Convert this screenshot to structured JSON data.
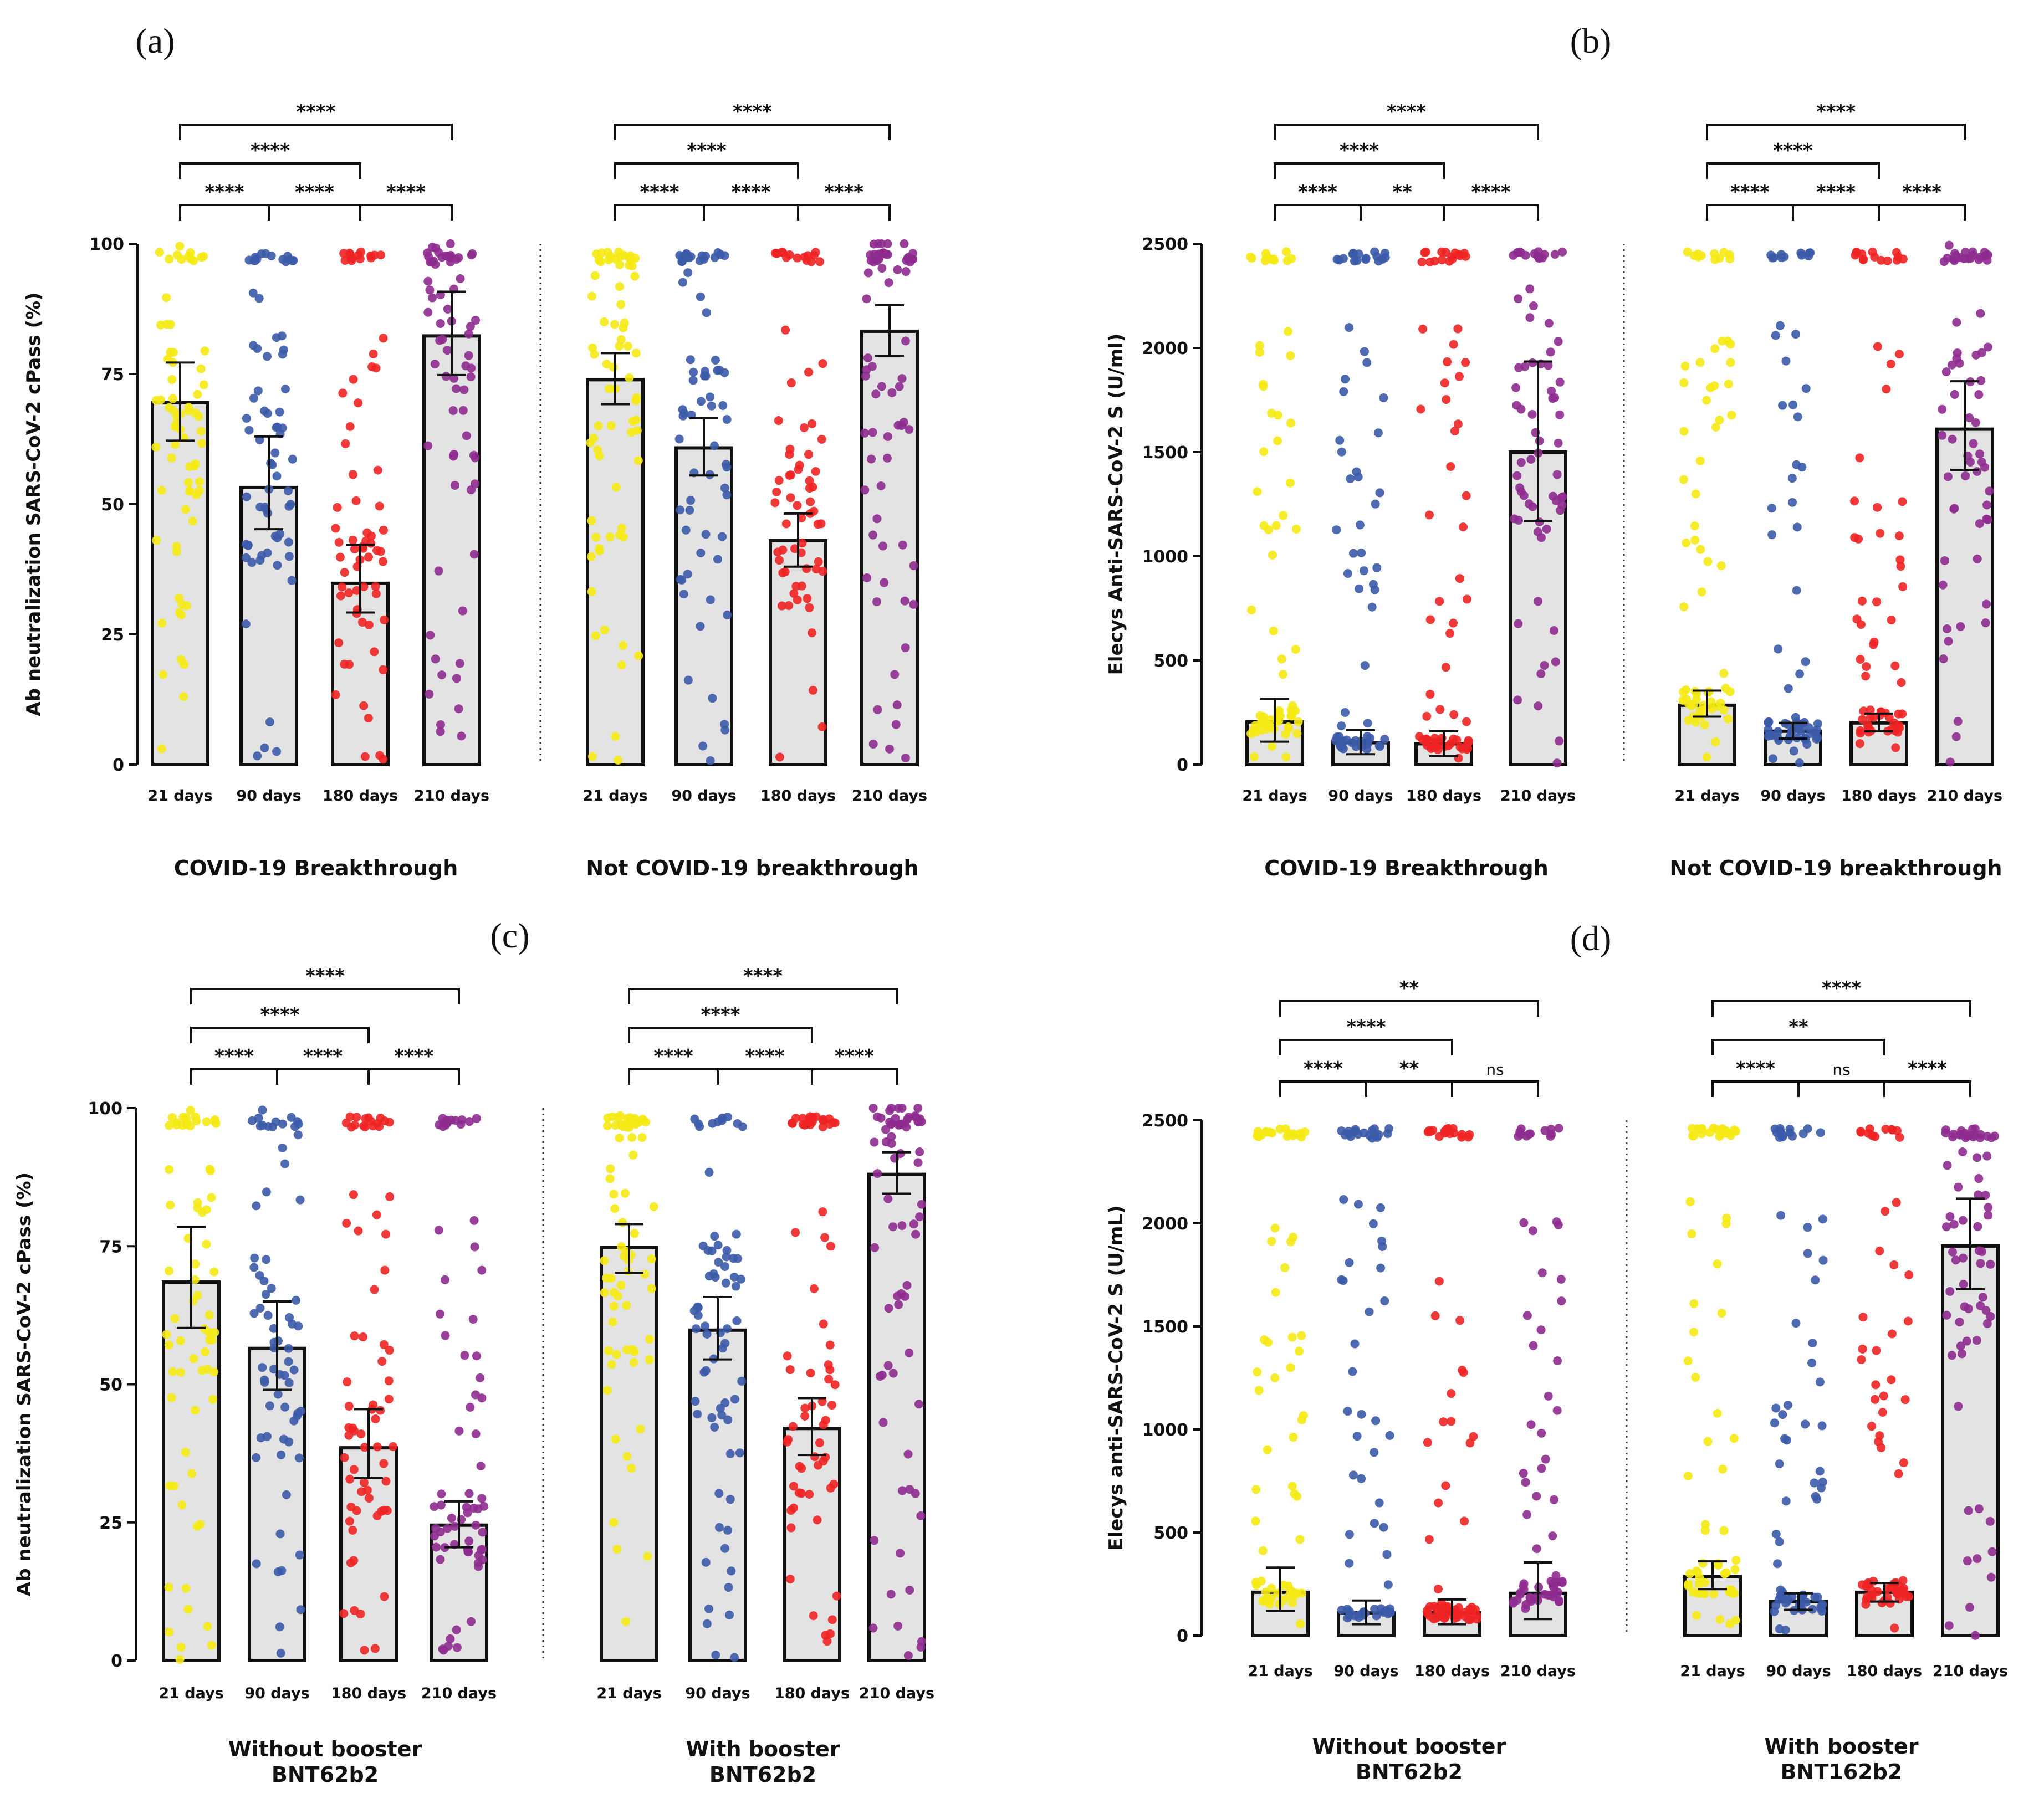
{
  "figure": {
    "x_categories": [
      "21 days",
      "90 days",
      "180 days",
      "210 days"
    ],
    "colors": {
      "21 days": "#f5ea14",
      "90 days": "#3b5aa8",
      "180 days": "#ee2424",
      "210 days": "#8e2b8f",
      "bar_fill": "#e3e3e3",
      "bar_edge": "#111111"
    }
  },
  "chart_data": [
    {
      "panel": "(a)",
      "type": "bar",
      "ylabel": "Ab neutralization SARS-CoV-2 cPass (%)",
      "ylim": [
        0,
        100
      ],
      "yticks": [
        0,
        25,
        50,
        75,
        100
      ],
      "groups": [
        {
          "label_lines": [
            "COVID-19 Breakthrough"
          ],
          "values": [
            69.5,
            53.2,
            34.8,
            82.3
          ],
          "err_low": [
            62.2,
            45.2,
            29.2,
            74.8
          ],
          "err_high": [
            77.2,
            63.0,
            42.2,
            90.8
          ],
          "comparisons": [
            {
              "from": 0,
              "to": 1,
              "label": "****"
            },
            {
              "from": 1,
              "to": 2,
              "label": "****"
            },
            {
              "from": 2,
              "to": 3,
              "label": "****"
            },
            {
              "from": 0,
              "to": 2,
              "label": "****"
            },
            {
              "from": 0,
              "to": 3,
              "label": "****"
            }
          ]
        },
        {
          "label_lines": [
            "Not COVID-19 breakthrough"
          ],
          "values": [
            73.9,
            60.8,
            43.0,
            83.2
          ],
          "err_low": [
            69.2,
            55.5,
            38.0,
            78.5
          ],
          "err_high": [
            79.0,
            66.5,
            48.2,
            88.2
          ],
          "comparisons": [
            {
              "from": 0,
              "to": 1,
              "label": "****"
            },
            {
              "from": 1,
              "to": 2,
              "label": "****"
            },
            {
              "from": 2,
              "to": 3,
              "label": "****"
            },
            {
              "from": 0,
              "to": 2,
              "label": "****"
            },
            {
              "from": 0,
              "to": 3,
              "label": "****"
            }
          ]
        }
      ]
    },
    {
      "panel": "(b)",
      "type": "bar",
      "ylabel": "Elecys Anti-SARS-CoV-2 S (U/ml)",
      "ylim": [
        0,
        2500
      ],
      "yticks": [
        0,
        500,
        1000,
        1500,
        2000,
        2500
      ],
      "groups": [
        {
          "label_lines": [
            "COVID-19 Breakthrough"
          ],
          "values": [
            205,
            105,
            100,
            1500
          ],
          "err_low": [
            110,
            50,
            40,
            1170
          ],
          "err_high": [
            315,
            165,
            160,
            1935
          ],
          "comparisons": [
            {
              "from": 0,
              "to": 1,
              "label": "****"
            },
            {
              "from": 1,
              "to": 2,
              "label": "**"
            },
            {
              "from": 2,
              "to": 3,
              "label": "****"
            },
            {
              "from": 0,
              "to": 2,
              "label": "****"
            },
            {
              "from": 0,
              "to": 3,
              "label": "****"
            }
          ]
        },
        {
          "label_lines": [
            "Not COVID-19 breakthrough"
          ],
          "values": [
            285,
            160,
            200,
            1610
          ],
          "err_low": [
            230,
            125,
            160,
            1415
          ],
          "err_high": [
            355,
            200,
            245,
            1840
          ],
          "comparisons": [
            {
              "from": 0,
              "to": 1,
              "label": "****"
            },
            {
              "from": 1,
              "to": 2,
              "label": "****"
            },
            {
              "from": 2,
              "to": 3,
              "label": "****"
            },
            {
              "from": 0,
              "to": 2,
              "label": "****"
            },
            {
              "from": 0,
              "to": 3,
              "label": "****"
            }
          ]
        }
      ]
    },
    {
      "panel": "(c)",
      "type": "bar",
      "ylabel": "Ab neutralization SARS-CoV-2 cPass (%)",
      "ylim": [
        0,
        100
      ],
      "yticks": [
        0,
        25,
        50,
        75,
        100
      ],
      "groups": [
        {
          "label_lines": [
            "Without booster",
            "BNT62b2"
          ],
          "values": [
            68.5,
            56.5,
            38.5,
            24.5
          ],
          "err_low": [
            60.2,
            49.0,
            33.0,
            20.5
          ],
          "err_high": [
            78.5,
            65.0,
            45.5,
            28.8
          ],
          "comparisons": [
            {
              "from": 0,
              "to": 1,
              "label": "****"
            },
            {
              "from": 1,
              "to": 2,
              "label": "****"
            },
            {
              "from": 2,
              "to": 3,
              "label": "****"
            },
            {
              "from": 0,
              "to": 2,
              "label": "****"
            },
            {
              "from": 0,
              "to": 3,
              "label": "****"
            }
          ]
        },
        {
          "label_lines": [
            "With booster",
            "BNT62b2"
          ],
          "values": [
            74.8,
            59.8,
            42.0,
            88.0
          ],
          "err_low": [
            70.2,
            54.5,
            37.2,
            84.5
          ],
          "err_high": [
            79.0,
            65.8,
            47.5,
            92.0
          ],
          "comparisons": [
            {
              "from": 0,
              "to": 1,
              "label": "****"
            },
            {
              "from": 1,
              "to": 2,
              "label": "****"
            },
            {
              "from": 2,
              "to": 3,
              "label": "****"
            },
            {
              "from": 0,
              "to": 2,
              "label": "****"
            },
            {
              "from": 0,
              "to": 3,
              "label": "****"
            }
          ]
        }
      ]
    },
    {
      "panel": "(d)",
      "type": "bar",
      "ylabel": "Elecys anti-SARS-CoV-2 S (U/mL)",
      "ylim": [
        0,
        2500
      ],
      "yticks": [
        0,
        500,
        1000,
        1500,
        2000,
        2500
      ],
      "groups": [
        {
          "label_lines": [
            "Without booster",
            "BNT62b2"
          ],
          "values": [
            210,
            110,
            110,
            205
          ],
          "err_low": [
            120,
            55,
            55,
            80
          ],
          "err_high": [
            330,
            170,
            175,
            355
          ],
          "comparisons": [
            {
              "from": 0,
              "to": 1,
              "label": "****"
            },
            {
              "from": 1,
              "to": 2,
              "label": "**"
            },
            {
              "from": 2,
              "to": 3,
              "label": "ns"
            },
            {
              "from": 0,
              "to": 2,
              "label": "****"
            },
            {
              "from": 0,
              "to": 3,
              "label": "**"
            }
          ]
        },
        {
          "label_lines": [
            "With booster",
            "BNT162b2"
          ],
          "values": [
            285,
            165,
            210,
            1890
          ],
          "err_low": [
            225,
            125,
            165,
            1680
          ],
          "err_high": [
            360,
            205,
            255,
            2120
          ],
          "comparisons": [
            {
              "from": 0,
              "to": 1,
              "label": "****"
            },
            {
              "from": 1,
              "to": 2,
              "label": "ns"
            },
            {
              "from": 2,
              "to": 3,
              "label": "****"
            },
            {
              "from": 0,
              "to": 2,
              "label": "**"
            },
            {
              "from": 0,
              "to": 3,
              "label": "****"
            }
          ]
        }
      ]
    }
  ]
}
